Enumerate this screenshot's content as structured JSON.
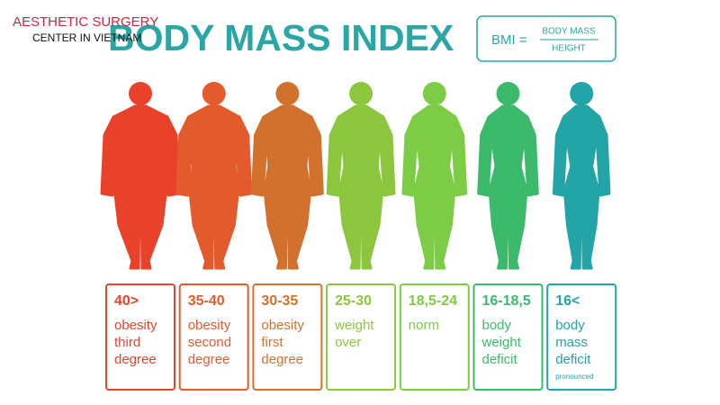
{
  "logo": {
    "line1": "AESTHETIC SURGERY",
    "line2": "CENTER IN VIETNAM"
  },
  "title": "BODY MASS INDEX",
  "formula": {
    "lhs": "BMI =",
    "numerator": "BODY MASS",
    "denominator": "HEIGHT"
  },
  "categories": [
    {
      "range": "40>",
      "label": [
        "obesity",
        "third",
        "degree"
      ],
      "color": "#e8432a"
    },
    {
      "range": "35-40",
      "label": [
        "obesity",
        "second",
        "degree"
      ],
      "color": "#e35a2c"
    },
    {
      "range": "30-35",
      "label": [
        "obesity",
        "first",
        "degree"
      ],
      "color": "#d2712e"
    },
    {
      "range": "25-30",
      "label": [
        "weight",
        "over"
      ],
      "color": "#8cc63f"
    },
    {
      "range": "18,5-24",
      "label": [
        "norm"
      ],
      "color": "#7dcc45"
    },
    {
      "range": "16-18,5",
      "label": [
        "body",
        "weight",
        "deficit"
      ],
      "color": "#3cba6b"
    },
    {
      "range": "16<",
      "label": [
        "body",
        "mass",
        "deficit"
      ],
      "note": "pronounced",
      "color": "#23a4a6"
    }
  ]
}
